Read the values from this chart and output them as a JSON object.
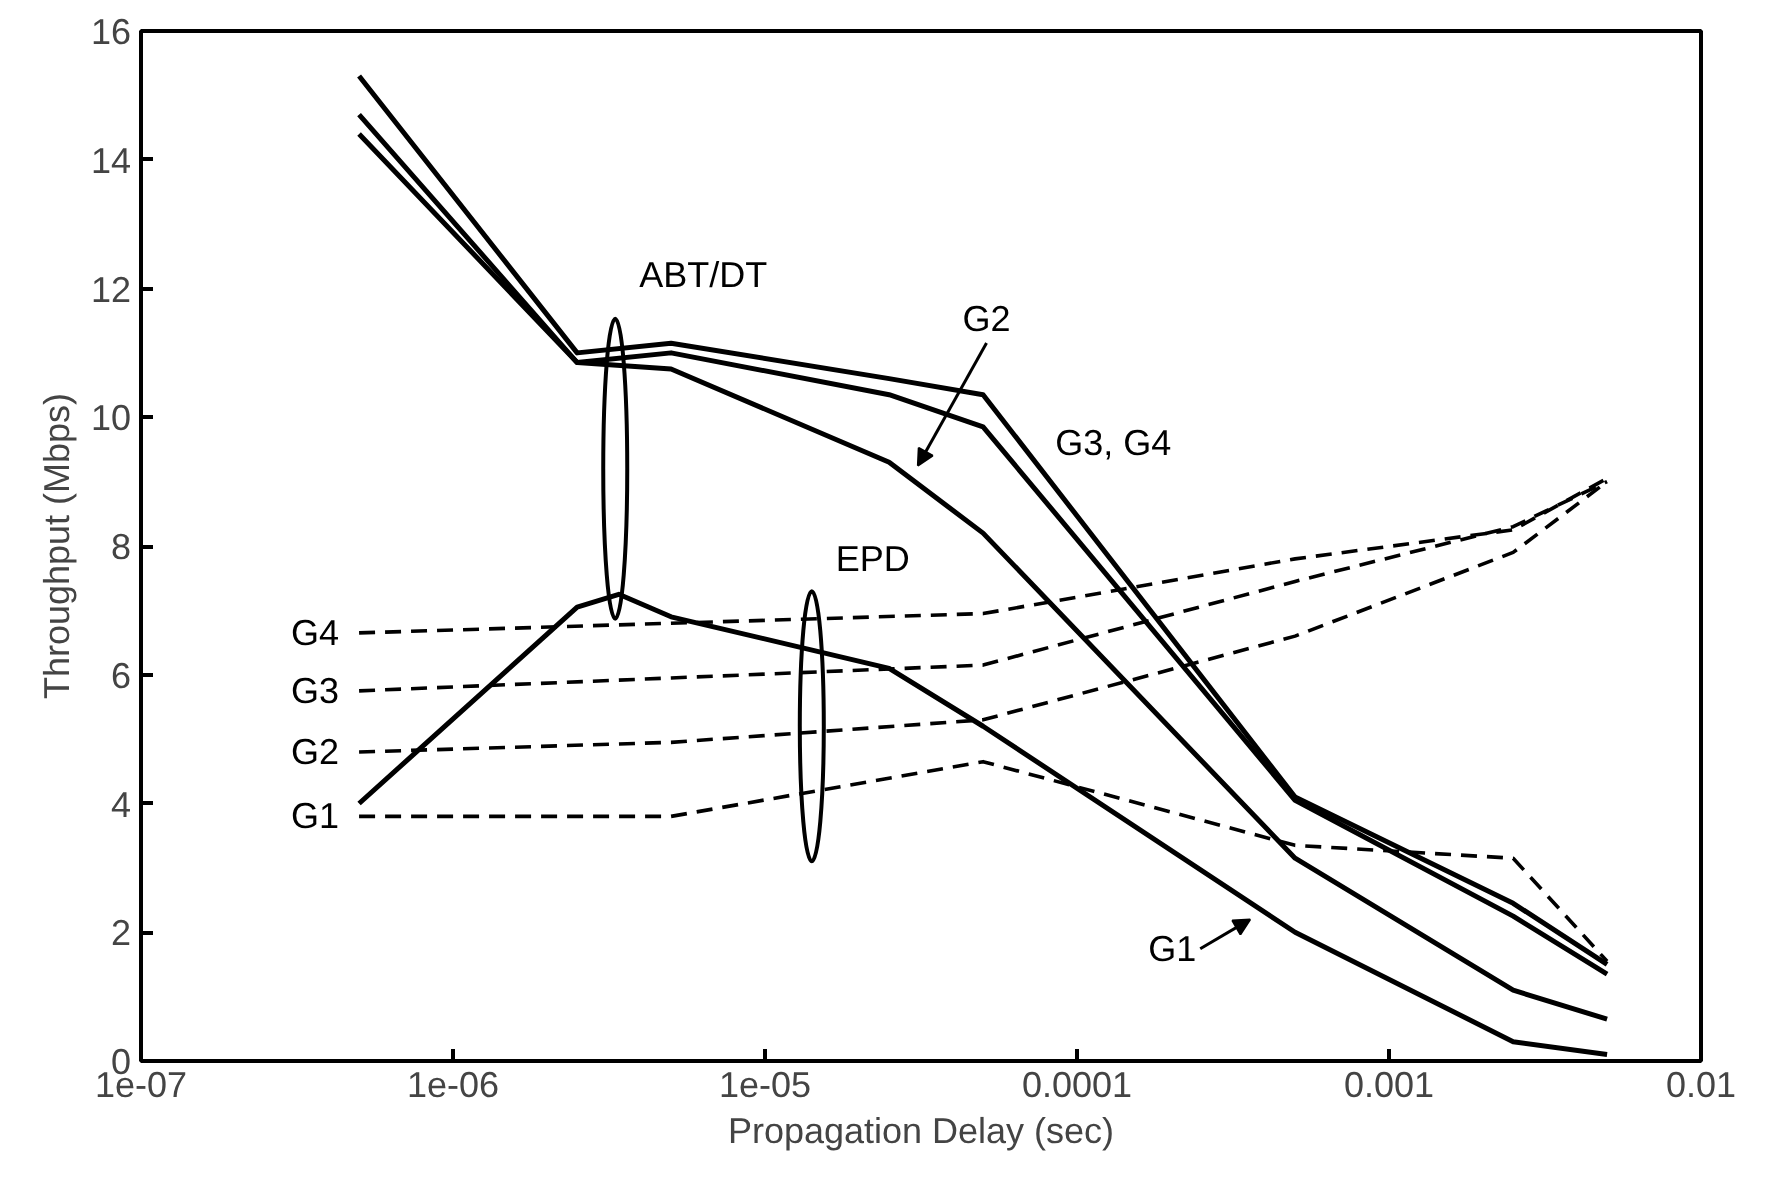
{
  "chart_data": {
    "type": "line",
    "xlabel": "Propagation Delay (sec)",
    "ylabel": "Throughput (Mbps)",
    "log": "x",
    "xlim": [
      1e-07,
      0.01
    ],
    "ylim": [
      0,
      16
    ],
    "xticks": [
      {
        "value": 1e-07,
        "label": "1e-07"
      },
      {
        "value": 1e-06,
        "label": "1e-06"
      },
      {
        "value": 1e-05,
        "label": "1e-05"
      },
      {
        "value": 0.0001,
        "label": "0.0001"
      },
      {
        "value": 0.001,
        "label": "0.001"
      },
      {
        "value": 0.01,
        "label": "0.01"
      }
    ],
    "yticks": [
      0,
      2,
      4,
      6,
      8,
      10,
      12,
      14,
      16
    ],
    "grid": false,
    "series": [
      {
        "color": "#000000",
        "line_style": "solid",
        "x": [
          5e-07,
          2.5e-06,
          5e-06,
          2.5e-05,
          5e-05,
          0.0005,
          0.0025,
          0.005
        ],
        "values": [
          15.3,
          11.0,
          11.15,
          10.6,
          10.35,
          4.1,
          2.45,
          1.5
        ]
      },
      {
        "color": "#000000",
        "line_style": "solid",
        "x": [
          5e-07,
          2.5e-06,
          5e-06,
          2.5e-05,
          5e-05,
          0.0005,
          0.0025,
          0.005
        ],
        "values": [
          14.7,
          10.85,
          11.0,
          10.35,
          9.85,
          4.05,
          2.25,
          1.35
        ]
      },
      {
        "color": "#000000",
        "line_style": "solid",
        "x": [
          5e-07,
          2.5e-06,
          5e-06,
          2.5e-05,
          5e-05,
          0.0005,
          0.0025,
          0.005
        ],
        "values": [
          14.4,
          10.85,
          10.75,
          9.3,
          8.2,
          3.15,
          1.1,
          0.65
        ]
      },
      {
        "color": "#000000",
        "line_style": "solid",
        "x": [
          5e-07,
          2.5e-06,
          3.4e-06,
          5e-06,
          2.5e-05,
          5e-05,
          0.0005,
          0.0025,
          0.005
        ],
        "values": [
          4.0,
          7.05,
          7.25,
          6.9,
          6.1,
          5.2,
          2.0,
          0.3,
          0.1
        ]
      },
      {
        "name": "G1",
        "color": "#000000",
        "line_style": "dashed",
        "x": [
          5e-07,
          5e-06,
          5e-05,
          0.0005,
          0.0025,
          0.005
        ],
        "values": [
          3.8,
          3.8,
          4.65,
          3.35,
          3.15,
          1.55
        ]
      },
      {
        "name": "G2",
        "color": "#000000",
        "line_style": "dashed",
        "x": [
          5e-07,
          5e-06,
          5e-05,
          0.0005,
          0.0025,
          0.005
        ],
        "values": [
          4.8,
          4.95,
          5.3,
          6.6,
          7.9,
          9.0
        ]
      },
      {
        "name": "G3",
        "color": "#000000",
        "line_style": "dashed",
        "x": [
          5e-07,
          5e-06,
          5e-05,
          0.0005,
          0.0025,
          0.005
        ],
        "values": [
          5.75,
          5.95,
          6.15,
          7.45,
          8.3,
          9.0
        ]
      },
      {
        "name": "G4",
        "color": "#000000",
        "line_style": "dashed",
        "x": [
          5e-07,
          5e-06,
          5e-05,
          0.0005,
          0.0025,
          0.005
        ],
        "values": [
          6.65,
          6.8,
          6.95,
          7.8,
          8.25,
          9.05
        ]
      }
    ],
    "annotations": [
      "ABT/DT",
      "EPD",
      "G2",
      "G3, G4",
      "G1"
    ]
  }
}
